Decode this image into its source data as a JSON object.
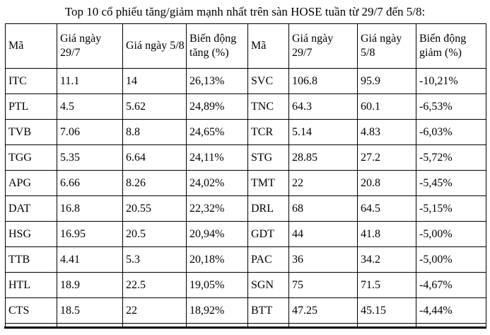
{
  "title": "Top 10 cổ phiếu tăng/giảm mạnh nhất trên sàn HOSE tuần từ 29/7 đến 5/8:",
  "table": {
    "headers": [
      "Mã",
      "Giá ngày 29/7",
      "Giá ngày 5/8",
      "Biến động tăng (%)",
      "Mã",
      "Giá ngày 29/7",
      "Giá ngày 5/8",
      "Biến động giảm (%)"
    ],
    "rows": [
      [
        "ITC",
        "11.1",
        "14",
        "26,13%",
        "SVC",
        "106.8",
        "95.9",
        "-10,21%"
      ],
      [
        "PTL",
        "4.5",
        "5.62",
        "24,89%",
        "TNC",
        "64.3",
        "60.1",
        "-6,53%"
      ],
      [
        "TVB",
        "7.06",
        "8.8",
        "24,65%",
        "TCR",
        "5.14",
        "4.83",
        "-6,03%"
      ],
      [
        "TGG",
        "5.35",
        "6.64",
        "24,11%",
        "STG",
        "28.85",
        "27.2",
        "-5,72%"
      ],
      [
        "APG",
        "6.66",
        "8.26",
        "24,02%",
        "TMT",
        "22",
        "20.8",
        "-5,45%"
      ],
      [
        "DAT",
        "16.8",
        "20.55",
        "22,32%",
        "DRL",
        "68",
        "64.5",
        "-5,15%"
      ],
      [
        "HSG",
        "16.95",
        "20.5",
        "20,94%",
        "GDT",
        "44",
        "41.8",
        "-5,00%"
      ],
      [
        "TTB",
        "4.41",
        "5.3",
        "20,18%",
        "PAC",
        "36",
        "34.2",
        "-5,00%"
      ],
      [
        "HTL",
        "18.9",
        "22.5",
        "19,05%",
        "SGN",
        "75",
        "71.5",
        "-4,67%"
      ],
      [
        "CTS",
        "18.5",
        "22",
        "18,92%",
        "BTT",
        "47.25",
        "45.15",
        "-4,44%"
      ]
    ]
  }
}
